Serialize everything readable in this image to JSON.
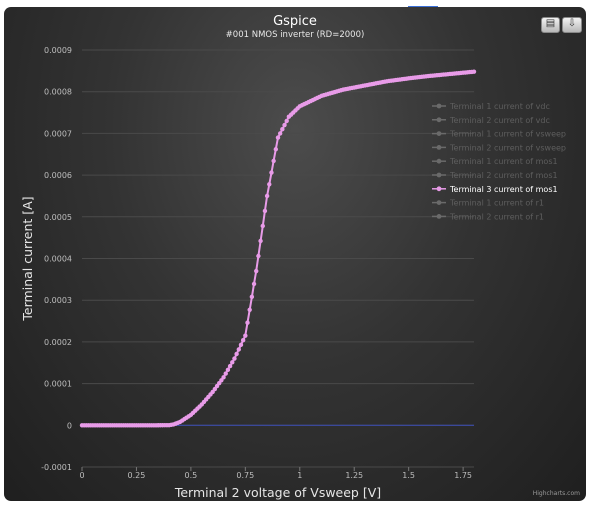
{
  "chart_data": {
    "type": "line",
    "title": "Gspice",
    "subtitle": "#001 NMOS inverter (RD=2000)",
    "xlabel": "Terminal 2 voltage of Vsweep [V]",
    "ylabel": "Terminal current [A]",
    "xlim": [
      0,
      1.8
    ],
    "ylim": [
      -0.0001,
      0.0009
    ],
    "x_ticks": [
      "0",
      "0.25",
      "0.5",
      "0.75",
      "1",
      "1.25",
      "1.5",
      "1.75"
    ],
    "y_ticks": [
      "-0.0001",
      "0",
      "0.0001",
      "0.0002",
      "0.0003",
      "0.0004",
      "0.0005",
      "0.0006",
      "0.0007",
      "0.0008",
      "0.0009"
    ],
    "grid": true,
    "legend_position": "right",
    "series": [
      {
        "name": "Terminal 1 current of vdc",
        "visible": false
      },
      {
        "name": "Terminal 2 current of vdc",
        "visible": false
      },
      {
        "name": "Terminal 1 current of vsweep",
        "visible": false
      },
      {
        "name": "Terminal 2 current of vsweep",
        "visible": false
      },
      {
        "name": "Terminal 1 current of mos1",
        "visible": false
      },
      {
        "name": "Terminal 2 current of mos1",
        "visible": false
      },
      {
        "name": "Terminal 3 current of mos1",
        "visible": true,
        "color": "#e89be8",
        "points": [
          [
            0,
            0
          ],
          [
            0.1,
            0
          ],
          [
            0.2,
            0
          ],
          [
            0.3,
            0
          ],
          [
            0.4,
            2e-07
          ],
          [
            0.42,
            2e-06
          ],
          [
            0.45,
            8e-06
          ],
          [
            0.5,
            2.5e-05
          ],
          [
            0.55,
            5e-05
          ],
          [
            0.6,
            8e-05
          ],
          [
            0.65,
            0.000115
          ],
          [
            0.7,
            0.00016
          ],
          [
            0.75,
            0.000215
          ],
          [
            0.8,
            0.00037
          ],
          [
            0.85,
            0.00055
          ],
          [
            0.9,
            0.00069
          ],
          [
            0.95,
            0.00074
          ],
          [
            1.0,
            0.000765
          ],
          [
            1.1,
            0.00079
          ],
          [
            1.2,
            0.000805
          ],
          [
            1.3,
            0.000815
          ],
          [
            1.4,
            0.000825
          ],
          [
            1.5,
            0.000832
          ],
          [
            1.6,
            0.000838
          ],
          [
            1.7,
            0.000843
          ],
          [
            1.8,
            0.000848
          ]
        ]
      },
      {
        "name": "Terminal 1 current of r1",
        "visible": false
      },
      {
        "name": "Terminal 2 current of r1",
        "visible": false
      }
    ],
    "baseline_color": "#3a4aa8"
  },
  "ui": {
    "print_icon": "printer-icon",
    "export_icon": "export-icon",
    "print_glyph": "▤",
    "export_glyph": "⇩",
    "credits": "Highcharts.com"
  }
}
